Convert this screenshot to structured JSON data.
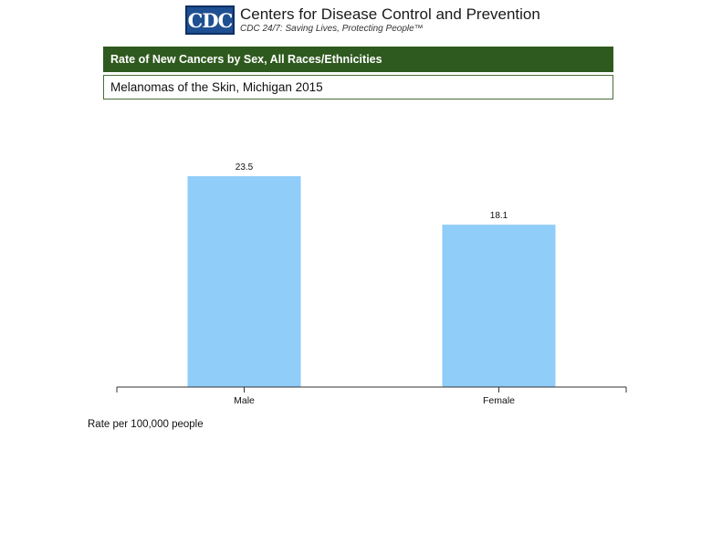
{
  "header": {
    "logo_text": "CDC",
    "org_name": "Centers for Disease Control and Prevention",
    "tagline": "CDC 24/7: Saving Lives, Protecting People™"
  },
  "title": "Rate of New Cancers by Sex, All Races/Ethnicities",
  "subtitle": "Melanomas of the Skin, Michigan 2015",
  "footnote": "Rate per 100,000 people",
  "colors": {
    "bar": "#90cdf9",
    "title_bar": "#2f5a1f",
    "logo": "#1e4f91"
  },
  "chart_data": {
    "type": "bar",
    "categories": [
      "Male",
      "Female"
    ],
    "values": [
      23.5,
      18.1
    ],
    "value_labels": [
      "23.5",
      "18.1"
    ],
    "title": "Rate of New Cancers by Sex, All Races/Ethnicities",
    "subtitle": "Melanomas of the Skin, Michigan 2015",
    "xlabel": "",
    "ylabel": "Rate per 100,000 people",
    "ylim": [
      0,
      29
    ],
    "grid": false,
    "legend": "none"
  }
}
